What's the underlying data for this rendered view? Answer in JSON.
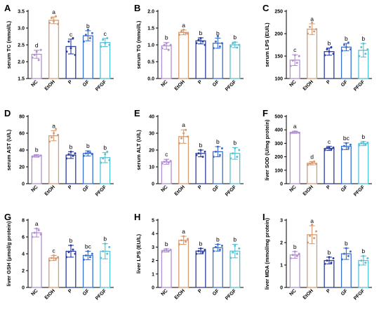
{
  "figure": {
    "colors": {
      "NC": "#b390d4",
      "EtOH": "#d99b72",
      "P": "#2b3d9e",
      "GF": "#3a6fcf",
      "PFGF": "#56c2d6"
    }
  },
  "chart_data": [
    {
      "panel": "A",
      "type": "bar",
      "categories": [
        "NC",
        "EtOH",
        "P",
        "GF",
        "PFGF"
      ],
      "values": [
        2.22,
        3.23,
        2.45,
        2.77,
        2.57
      ],
      "errors": [
        0.12,
        0.1,
        0.22,
        0.15,
        0.12
      ],
      "points": [
        [
          2.12,
          2.2,
          2.3,
          2.05,
          2.35
        ],
        [
          3.15,
          3.3,
          3.2,
          3.35,
          3.12
        ],
        [
          2.3,
          2.6,
          2.4,
          2.7,
          2.2
        ],
        [
          2.6,
          2.8,
          2.95,
          2.7,
          2.85
        ],
        [
          2.45,
          2.65,
          2.55,
          2.7,
          2.5
        ]
      ],
      "letters": [
        "d",
        "a",
        "c",
        "b",
        "c"
      ],
      "ylabel": "serum TC (mmol/L)",
      "ylim": [
        1.5,
        3.5
      ],
      "yticks": [
        "1.5",
        "2.0",
        "2.5",
        "3.0",
        "3.5"
      ]
    },
    {
      "panel": "B",
      "type": "bar",
      "categories": [
        "NC",
        "EtOH",
        "P",
        "GF",
        "PFGF"
      ],
      "values": [
        0.97,
        1.37,
        1.12,
        1.05,
        1.0
      ],
      "errors": [
        0.1,
        0.07,
        0.09,
        0.15,
        0.08
      ],
      "points": [
        [
          0.9,
          1.0,
          1.05,
          0.85,
          1.0
        ],
        [
          1.3,
          1.4,
          1.45,
          1.35,
          1.33
        ],
        [
          1.05,
          1.15,
          1.2,
          1.1,
          1.0
        ],
        [
          0.9,
          1.1,
          1.25,
          0.95,
          1.05
        ],
        [
          0.95,
          1.05,
          1.08,
          0.92,
          1.0
        ]
      ],
      "letters": [
        "b",
        "a",
        "b",
        "b",
        "b"
      ],
      "ylabel": "serum TG (mmol/L)",
      "ylim": [
        0.0,
        2.0
      ],
      "yticks": [
        "0.0",
        "0.5",
        "1.0",
        "1.5",
        "2.0"
      ]
    },
    {
      "panel": "C",
      "type": "bar",
      "categories": [
        "NC",
        "EtOH",
        "P",
        "GF",
        "PFGF"
      ],
      "values": [
        141,
        210,
        160,
        170,
        163
      ],
      "errors": [
        12,
        12,
        8,
        8,
        15
      ],
      "points": [
        [
          128,
          140,
          152,
          135,
          150
        ],
        [
          200,
          215,
          225,
          205,
          210
        ],
        [
          152,
          165,
          160,
          170,
          155
        ],
        [
          162,
          175,
          170,
          180,
          165
        ],
        [
          150,
          170,
          178,
          155,
          165
        ]
      ],
      "letters": [
        "c",
        "a",
        "b",
        "b",
        "b"
      ],
      "ylabel": "serum LPS (EU/L)",
      "ylim": [
        100,
        250
      ],
      "yticks": [
        "100",
        "150",
        "200",
        "250"
      ]
    },
    {
      "panel": "D",
      "type": "bar",
      "categories": [
        "NC",
        "EtOH",
        "P",
        "GF",
        "PFGF"
      ],
      "values": [
        33,
        57,
        34,
        36,
        31
      ],
      "errors": [
        1.5,
        6,
        4,
        3,
        6
      ],
      "points": [
        [
          32,
          33,
          34,
          32.5,
          33.5
        ],
        [
          50,
          55,
          60,
          65,
          58
        ],
        [
          30,
          35,
          38,
          33,
          36
        ],
        [
          33,
          36,
          38,
          37,
          35
        ],
        [
          25,
          30,
          35,
          38,
          28
        ]
      ],
      "letters": [
        "b",
        "a",
        "b",
        "b",
        "b"
      ],
      "ylabel": "serum AST (U/L)",
      "ylim": [
        0,
        80
      ],
      "yticks": [
        "0",
        "20",
        "40",
        "60",
        "80"
      ]
    },
    {
      "panel": "E",
      "type": "bar",
      "categories": [
        "NC",
        "EtOH",
        "P",
        "GF",
        "PFGF"
      ],
      "values": [
        13,
        28,
        18,
        19,
        18
      ],
      "errors": [
        1.5,
        4,
        2,
        3,
        3.5
      ],
      "points": [
        [
          12,
          13,
          14,
          12.5,
          13.5
        ],
        [
          24,
          27,
          30,
          32,
          28
        ],
        [
          17,
          18,
          20,
          16,
          19
        ],
        [
          16,
          19,
          22,
          17,
          21
        ],
        [
          15,
          18,
          21,
          16,
          20
        ]
      ],
      "letters": [
        "c",
        "a",
        "b",
        "b",
        "b"
      ],
      "ylabel": "serum ALT (U/L)",
      "ylim": [
        0,
        40
      ],
      "yticks": [
        "0",
        "10",
        "20",
        "30",
        "40"
      ]
    },
    {
      "panel": "F",
      "type": "bar",
      "categories": [
        "NC",
        "EtOH",
        "P",
        "GF",
        "PFGF"
      ],
      "values": [
        382,
        152,
        262,
        278,
        298
      ],
      "errors": [
        8,
        12,
        15,
        25,
        15
      ],
      "points": [
        [
          375,
          380,
          388,
          385,
          378
        ],
        [
          140,
          150,
          160,
          165,
          145
        ],
        [
          250,
          265,
          270,
          255,
          268
        ],
        [
          255,
          280,
          300,
          265,
          290
        ],
        [
          285,
          300,
          310,
          290,
          305
        ]
      ],
      "letters": [
        "a",
        "d",
        "c",
        "bc",
        "b"
      ],
      "ylabel": "liver SOD (U/mg protein)",
      "ylim": [
        0,
        500
      ],
      "yticks": [
        "0",
        "100",
        "200",
        "300",
        "400",
        "500"
      ]
    },
    {
      "panel": "G",
      "type": "bar",
      "categories": [
        "NC",
        "EtOH",
        "P",
        "GF",
        "PFGF"
      ],
      "values": [
        6.5,
        3.5,
        4.3,
        3.8,
        4.3
      ],
      "errors": [
        0.5,
        0.3,
        0.7,
        0.5,
        0.9
      ],
      "points": [
        [
          6.0,
          6.5,
          7.0,
          6.8,
          6.3
        ],
        [
          3.2,
          3.5,
          3.8,
          3.4,
          3.6
        ],
        [
          3.6,
          4.2,
          5.0,
          4.5,
          4.0
        ],
        [
          3.3,
          3.8,
          4.3,
          3.6,
          4.0
        ],
        [
          3.5,
          4.3,
          5.2,
          4.0,
          4.8
        ]
      ],
      "letters": [
        "a",
        "c",
        "b",
        "bc",
        "b"
      ],
      "ylabel": "liver GSH (μmol/g protein)",
      "ylim": [
        0,
        8
      ],
      "yticks": [
        "0",
        "2",
        "4",
        "6",
        "8"
      ]
    },
    {
      "panel": "H",
      "type": "bar",
      "categories": [
        "NC",
        "EtOH",
        "P",
        "GF",
        "PFGF"
      ],
      "values": [
        2.75,
        3.5,
        2.7,
        2.95,
        2.7
      ],
      "errors": [
        0.12,
        0.3,
        0.2,
        0.25,
        0.5
      ],
      "points": [
        [
          2.65,
          2.75,
          2.85,
          2.7,
          2.8
        ],
        [
          3.2,
          3.5,
          3.8,
          3.4,
          3.6
        ],
        [
          2.5,
          2.7,
          2.9,
          2.6,
          2.8
        ],
        [
          2.7,
          3.0,
          3.2,
          2.8,
          3.1
        ],
        [
          2.2,
          2.6,
          3.1,
          2.5,
          2.9
        ]
      ],
      "letters": [
        "b",
        "a",
        "b",
        "b",
        "b"
      ],
      "ylabel": "liver LPS (EU/L)",
      "ylim": [
        0,
        5
      ],
      "yticks": [
        "0",
        "1",
        "2",
        "3",
        "4",
        "5"
      ]
    },
    {
      "panel": "I",
      "type": "bar",
      "categories": [
        "NC",
        "EtOH",
        "P",
        "GF",
        "PFGF"
      ],
      "values": [
        1.45,
        2.35,
        1.2,
        1.5,
        1.2
      ],
      "errors": [
        0.15,
        0.4,
        0.15,
        0.25,
        0.2
      ],
      "points": [
        [
          1.3,
          1.45,
          1.6,
          1.4,
          1.5
        ],
        [
          2.0,
          2.3,
          2.8,
          2.2,
          2.5
        ],
        [
          1.05,
          1.2,
          1.35,
          1.1,
          1.3
        ],
        [
          1.25,
          1.5,
          1.75,
          1.4,
          1.6
        ],
        [
          1.0,
          1.2,
          1.4,
          1.1,
          1.3
        ]
      ],
      "letters": [
        "b",
        "a",
        "b",
        "b",
        "b"
      ],
      "ylabel": "liver MDA (mmol/mg protein)",
      "ylim": [
        0,
        3
      ],
      "yticks": [
        "0",
        "1",
        "2",
        "3"
      ]
    }
  ]
}
